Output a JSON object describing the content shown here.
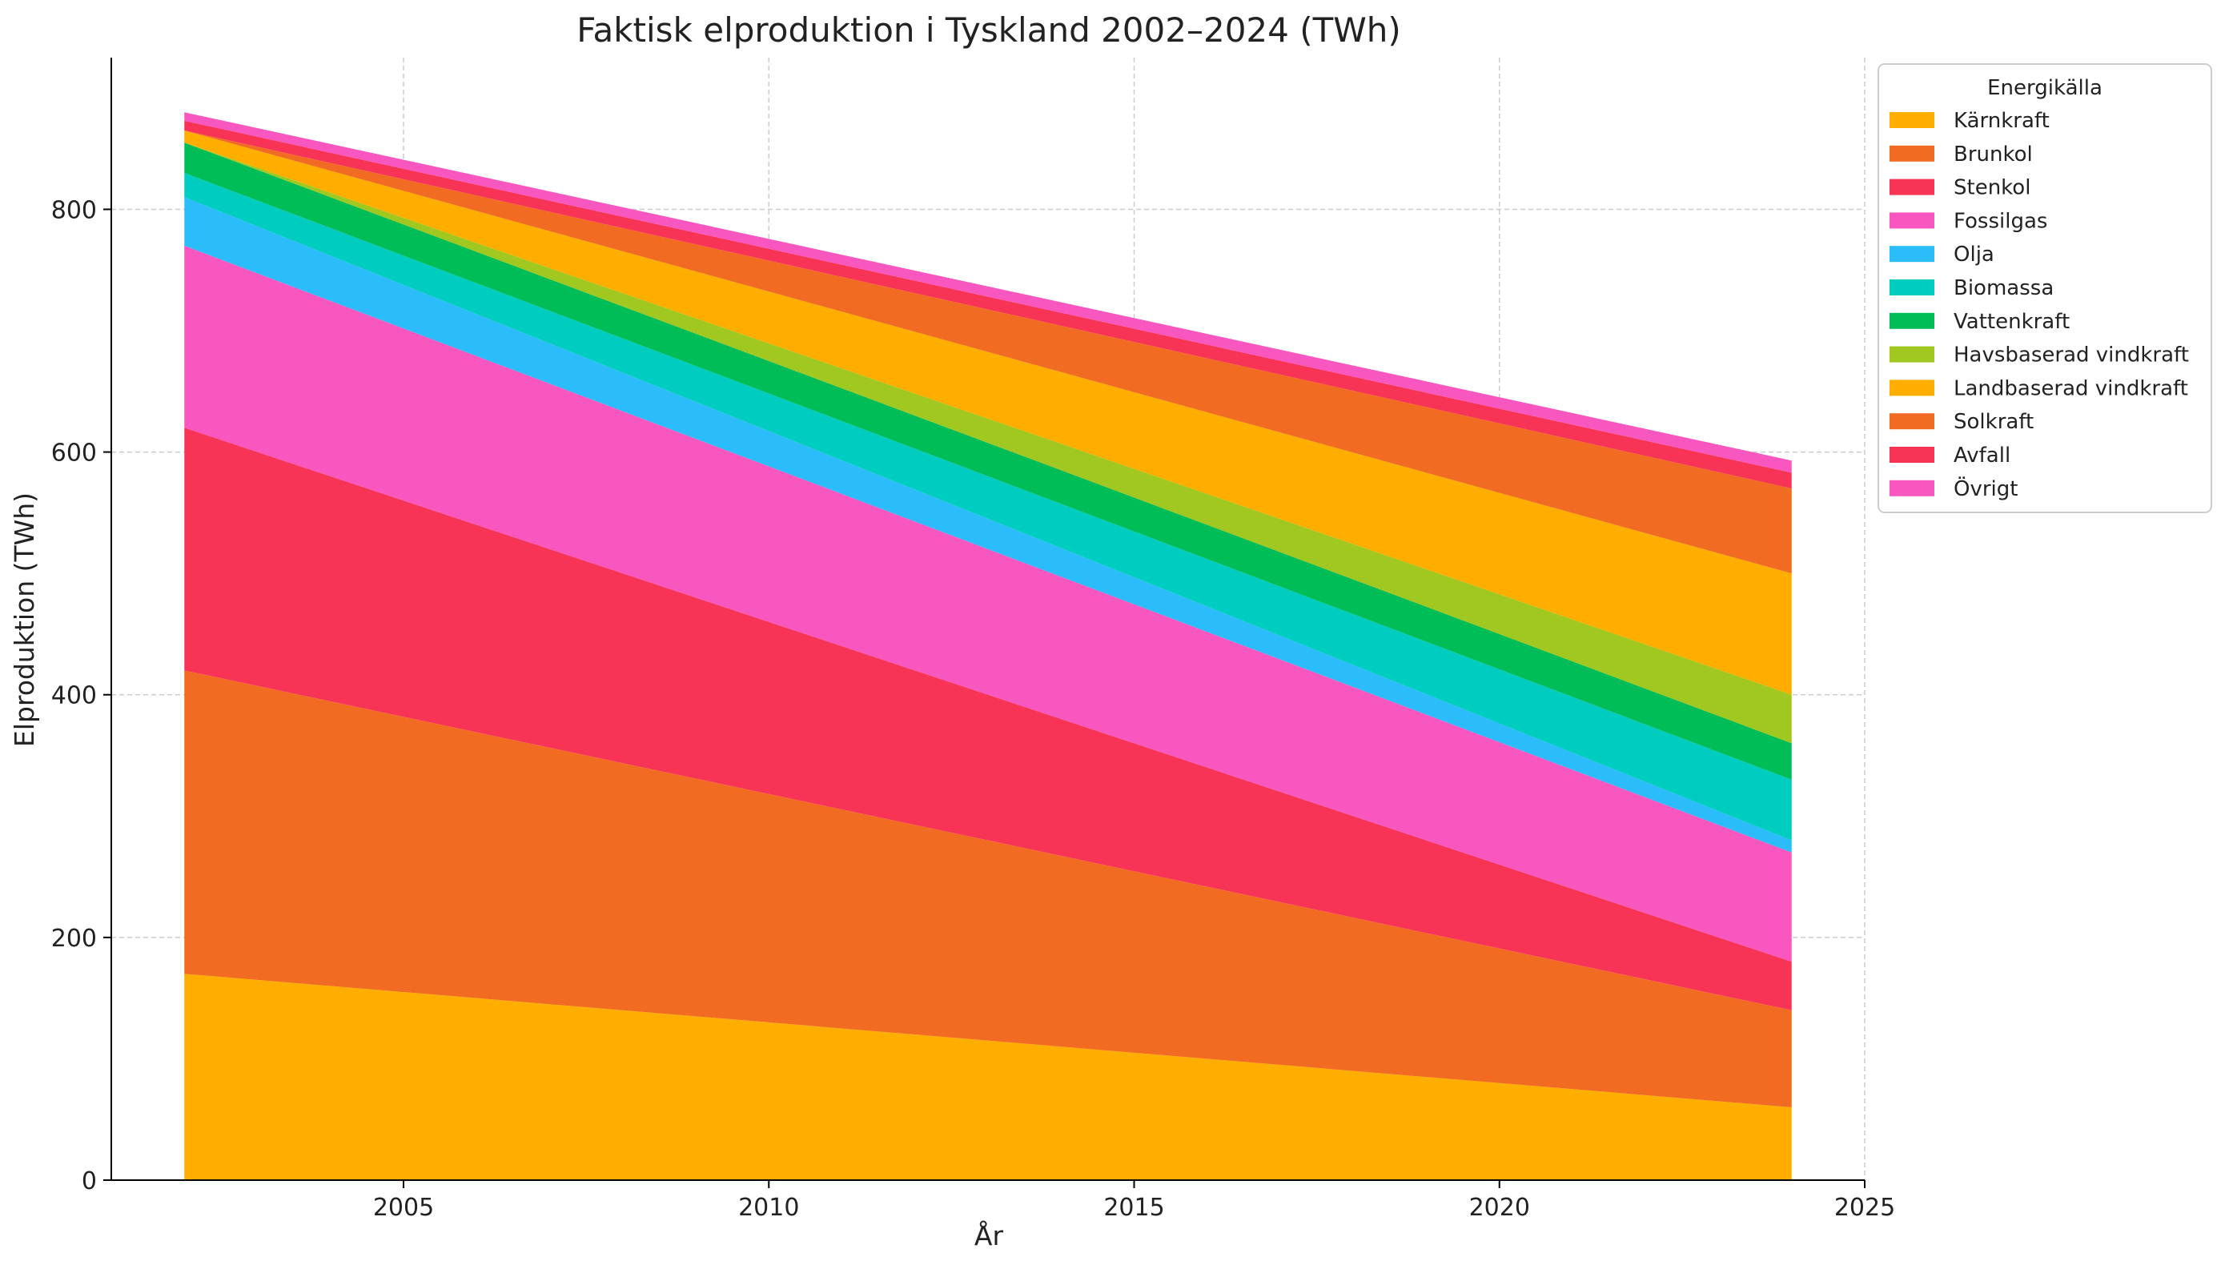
{
  "chart_data": {
    "type": "area",
    "title": "Faktisk elproduktion i Tyskland 2002–2024 (TWh)",
    "xlabel": "År",
    "ylabel": "Elproduktion (TWh)",
    "x": [
      2002,
      2024
    ],
    "xlim": [
      2001,
      2025
    ],
    "ylim": [
      0,
      925
    ],
    "xticks": [
      2005,
      2010,
      2015,
      2020,
      2025
    ],
    "yticks": [
      0,
      200,
      400,
      600,
      800
    ],
    "grid": true,
    "stacked": true,
    "legend": {
      "title": "Energikälla",
      "placement": "upper right, outside plot"
    },
    "series": [
      {
        "name": "Kärnkraft",
        "color": "#FFAE00",
        "values": [
          170,
          60
        ]
      },
      {
        "name": "Brunkol",
        "color": "#F26B22",
        "values": [
          250,
          80
        ]
      },
      {
        "name": "Stenkol",
        "color": "#F73455",
        "values": [
          200,
          40
        ]
      },
      {
        "name": "Fossilgas",
        "color": "#F857C0",
        "values": [
          150,
          90
        ]
      },
      {
        "name": "Olja",
        "color": "#2ABDFA",
        "values": [
          40,
          10
        ]
      },
      {
        "name": "Biomassa",
        "color": "#00CDC0",
        "values": [
          20,
          50
        ]
      },
      {
        "name": "Vattenkraft",
        "color": "#00BD57",
        "values": [
          25,
          30
        ]
      },
      {
        "name": "Havsbaserad vindkraft",
        "color": "#A0C820",
        "values": [
          0,
          40
        ]
      },
      {
        "name": "Landbaserad vindkraft",
        "color": "#FFAE00",
        "values": [
          10,
          100
        ]
      },
      {
        "name": "Solkraft",
        "color": "#F26B22",
        "values": [
          0,
          70
        ]
      },
      {
        "name": "Avfall",
        "color": "#F73455",
        "values": [
          8,
          13
        ]
      },
      {
        "name": "Övrigt",
        "color": "#F857C0",
        "values": [
          7,
          10
        ]
      }
    ]
  }
}
